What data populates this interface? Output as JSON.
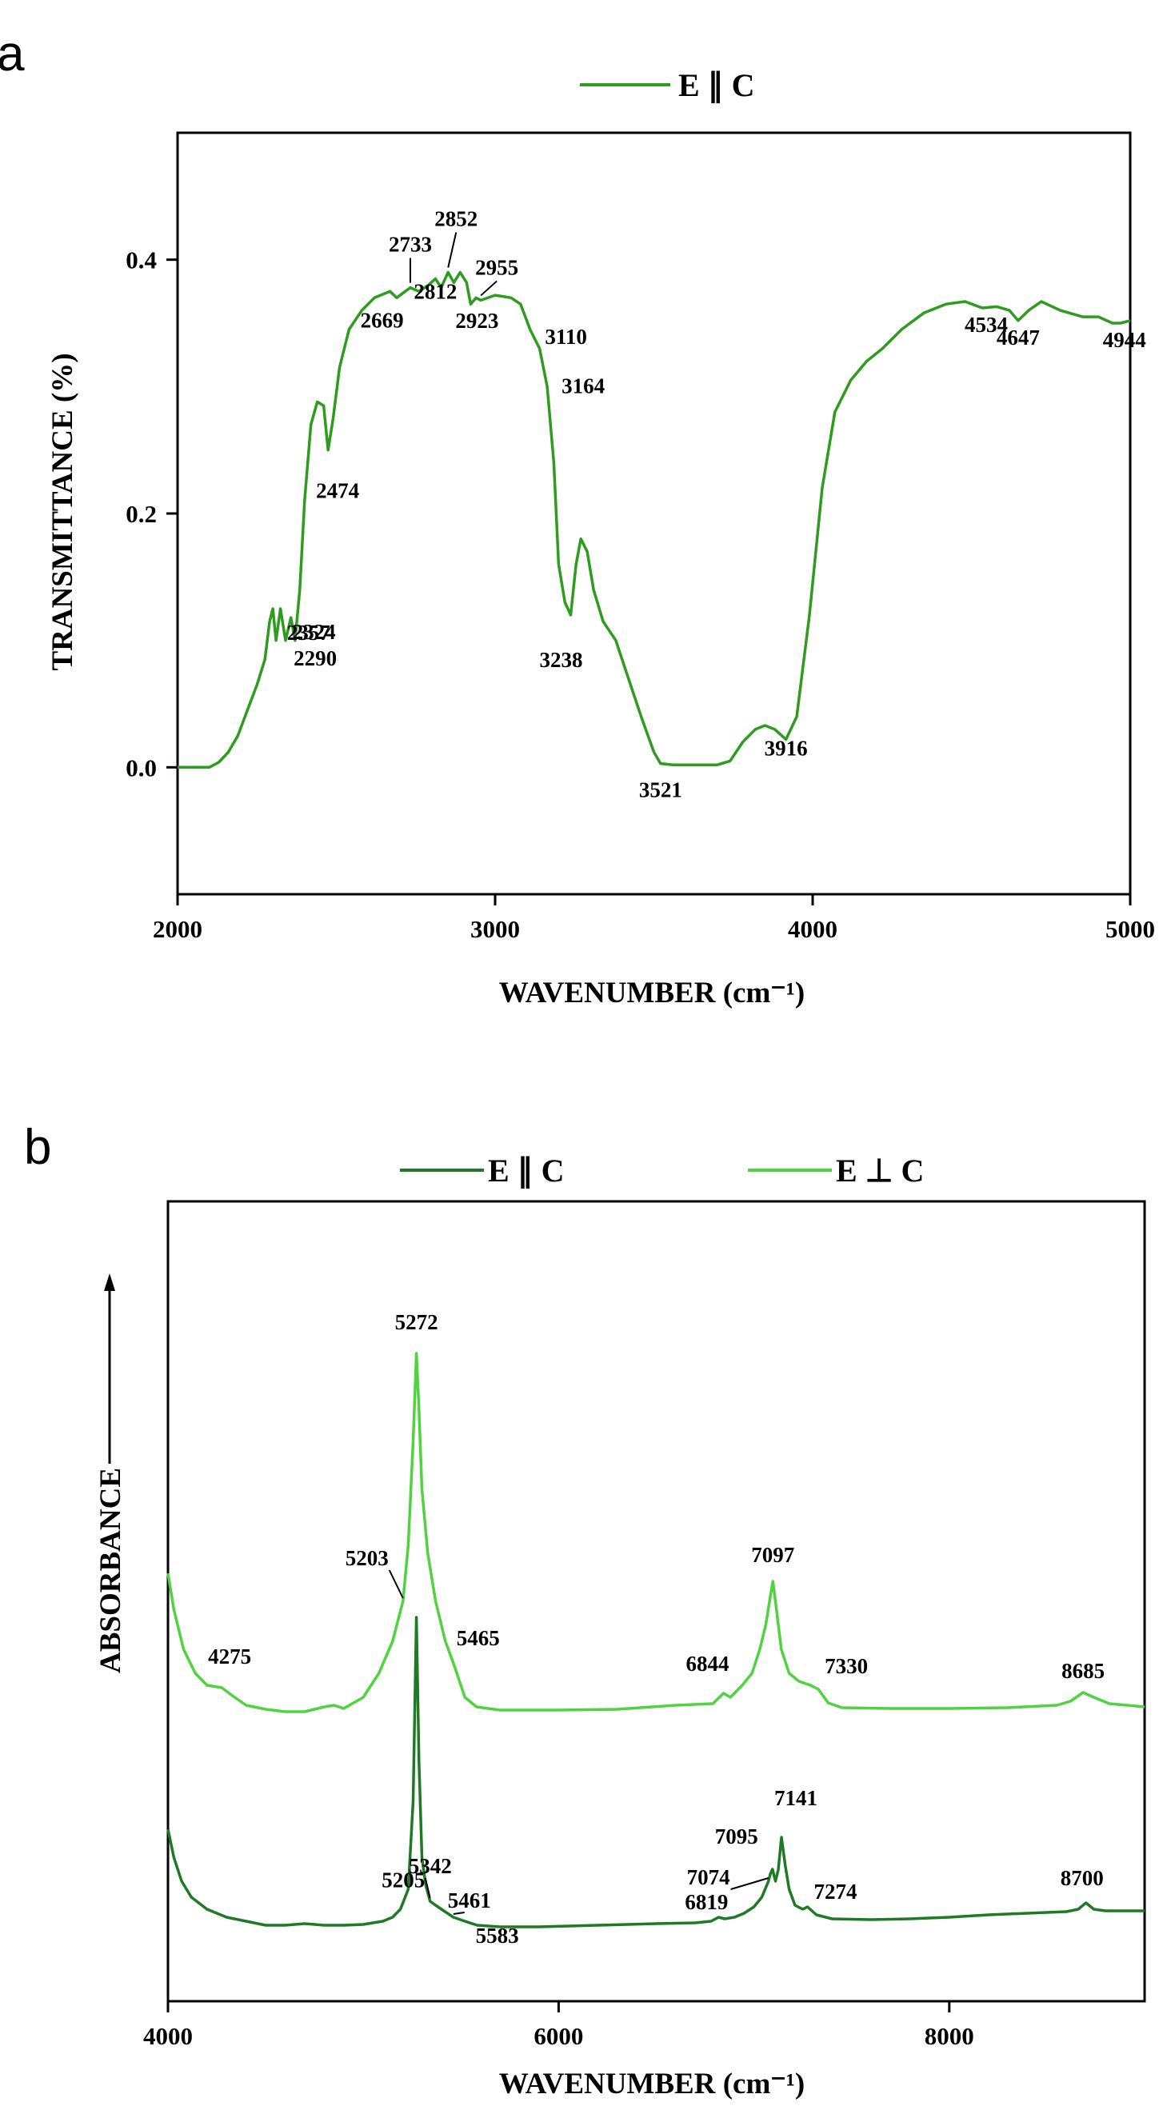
{
  "chart_data": [
    {
      "type": "line",
      "panel": "a",
      "title": "",
      "xlabel": "WAVENUMBER (cm⁻¹)",
      "ylabel": "TRANSMITTANCE (%)",
      "xlim": [
        2000,
        5000
      ],
      "ylim": [
        -0.1,
        0.5
      ],
      "x_ticks": [
        2000,
        3000,
        4000,
        5000
      ],
      "y_ticks": [
        0.0,
        0.2,
        0.4
      ],
      "x_tick_labels": [
        "2000",
        "3000",
        "4000",
        "5000"
      ],
      "y_tick_labels": [
        "0.0",
        "0.2",
        "0.4"
      ],
      "grid": false,
      "legend_position": "top-center",
      "series": [
        {
          "name": "E ∥ C",
          "color": "#2e9c1f",
          "points": [
            [
              2000,
              0.0
            ],
            [
              2100,
              0.0
            ],
            [
              2130,
              0.004
            ],
            [
              2160,
              0.012
            ],
            [
              2190,
              0.025
            ],
            [
              2220,
              0.045
            ],
            [
              2250,
              0.065
            ],
            [
              2275,
              0.085
            ],
            [
              2290,
              0.115
            ],
            [
              2300,
              0.125
            ],
            [
              2310,
              0.1
            ],
            [
              2324,
              0.125
            ],
            [
              2340,
              0.1
            ],
            [
              2357,
              0.118
            ],
            [
              2370,
              0.1
            ],
            [
              2385,
              0.14
            ],
            [
              2400,
              0.21
            ],
            [
              2420,
              0.27
            ],
            [
              2440,
              0.288
            ],
            [
              2460,
              0.285
            ],
            [
              2474,
              0.25
            ],
            [
              2490,
              0.275
            ],
            [
              2510,
              0.315
            ],
            [
              2540,
              0.345
            ],
            [
              2580,
              0.36
            ],
            [
              2620,
              0.37
            ],
            [
              2669,
              0.375
            ],
            [
              2690,
              0.37
            ],
            [
              2733,
              0.378
            ],
            [
              2760,
              0.375
            ],
            [
              2790,
              0.38
            ],
            [
              2812,
              0.385
            ],
            [
              2830,
              0.378
            ],
            [
              2852,
              0.39
            ],
            [
              2870,
              0.382
            ],
            [
              2890,
              0.39
            ],
            [
              2910,
              0.382
            ],
            [
              2923,
              0.365
            ],
            [
              2940,
              0.37
            ],
            [
              2955,
              0.368
            ],
            [
              3000,
              0.372
            ],
            [
              3050,
              0.37
            ],
            [
              3080,
              0.365
            ],
            [
              3110,
              0.345
            ],
            [
              3140,
              0.33
            ],
            [
              3164,
              0.3
            ],
            [
              3185,
              0.24
            ],
            [
              3200,
              0.16
            ],
            [
              3220,
              0.13
            ],
            [
              3238,
              0.12
            ],
            [
              3255,
              0.16
            ],
            [
              3270,
              0.18
            ],
            [
              3290,
              0.17
            ],
            [
              3310,
              0.14
            ],
            [
              3340,
              0.115
            ],
            [
              3380,
              0.1
            ],
            [
              3420,
              0.07
            ],
            [
              3460,
              0.04
            ],
            [
              3500,
              0.012
            ],
            [
              3521,
              0.003
            ],
            [
              3560,
              0.002
            ],
            [
              3620,
              0.002
            ],
            [
              3700,
              0.002
            ],
            [
              3740,
              0.005
            ],
            [
              3780,
              0.02
            ],
            [
              3820,
              0.03
            ],
            [
              3850,
              0.033
            ],
            [
              3880,
              0.03
            ],
            [
              3916,
              0.022
            ],
            [
              3950,
              0.04
            ],
            [
              3990,
              0.12
            ],
            [
              4030,
              0.22
            ],
            [
              4070,
              0.28
            ],
            [
              4120,
              0.305
            ],
            [
              4170,
              0.32
            ],
            [
              4220,
              0.33
            ],
            [
              4280,
              0.345
            ],
            [
              4350,
              0.358
            ],
            [
              4420,
              0.365
            ],
            [
              4480,
              0.367
            ],
            [
              4534,
              0.362
            ],
            [
              4580,
              0.363
            ],
            [
              4620,
              0.36
            ],
            [
              4647,
              0.352
            ],
            [
              4680,
              0.36
            ],
            [
              4720,
              0.367
            ],
            [
              4780,
              0.36
            ],
            [
              4850,
              0.355
            ],
            [
              4900,
              0.355
            ],
            [
              4944,
              0.35
            ],
            [
              4970,
              0.35
            ],
            [
              5000,
              0.352
            ]
          ]
        }
      ],
      "annotations": [
        {
          "text": "2290",
          "x": 2290,
          "y": 0.115
        },
        {
          "text": "2324",
          "x": 2324,
          "y": 0.125
        },
        {
          "text": "2357",
          "x": 2357,
          "y": 0.118
        },
        {
          "text": "2474",
          "x": 2474,
          "y": 0.25
        },
        {
          "text": "2669",
          "x": 2669,
          "y": 0.375
        },
        {
          "text": "2733",
          "x": 2733,
          "y": 0.378
        },
        {
          "text": "2812",
          "x": 2812,
          "y": 0.385
        },
        {
          "text": "2852",
          "x": 2852,
          "y": 0.39
        },
        {
          "text": "2923",
          "x": 2923,
          "y": 0.365
        },
        {
          "text": "2955",
          "x": 2955,
          "y": 0.368
        },
        {
          "text": "3110",
          "x": 3110,
          "y": 0.345
        },
        {
          "text": "3164",
          "x": 3164,
          "y": 0.3
        },
        {
          "text": "3238",
          "x": 3238,
          "y": 0.12
        },
        {
          "text": "3521",
          "x": 3521,
          "y": 0.003
        },
        {
          "text": "3916",
          "x": 3916,
          "y": 0.022
        },
        {
          "text": "4534",
          "x": 4534,
          "y": 0.362
        },
        {
          "text": "4647",
          "x": 4647,
          "y": 0.352
        },
        {
          "text": "4944",
          "x": 4944,
          "y": 0.35
        }
      ]
    },
    {
      "type": "line",
      "panel": "b",
      "title": "",
      "xlabel": "WAVENUMBER (cm⁻¹)",
      "ylabel": "ABSORBANCE",
      "xlim": [
        4000,
        9000
      ],
      "ylim": [
        0,
        1
      ],
      "x_ticks": [
        4000,
        6000,
        8000
      ],
      "x_tick_labels": [
        "4000",
        "6000",
        "8000"
      ],
      "y_ticks": [],
      "grid": false,
      "legend_position": "top",
      "series": [
        {
          "name": "E ∥ C",
          "color": "#1f7a26",
          "points": [
            [
              4000,
              0.215
            ],
            [
              4030,
              0.18
            ],
            [
              4070,
              0.15
            ],
            [
              4120,
              0.13
            ],
            [
              4200,
              0.115
            ],
            [
              4300,
              0.105
            ],
            [
              4400,
              0.1
            ],
            [
              4500,
              0.095
            ],
            [
              4600,
              0.095
            ],
            [
              4700,
              0.097
            ],
            [
              4800,
              0.095
            ],
            [
              4900,
              0.095
            ],
            [
              5000,
              0.096
            ],
            [
              5100,
              0.1
            ],
            [
              5150,
              0.105
            ],
            [
              5190,
              0.115
            ],
            [
              5230,
              0.14
            ],
            [
              5255,
              0.25
            ],
            [
              5272,
              0.48
            ],
            [
              5285,
              0.3
            ],
            [
              5300,
              0.18
            ],
            [
              5320,
              0.145
            ],
            [
              5342,
              0.125
            ],
            [
              5370,
              0.12
            ],
            [
              5400,
              0.115
            ],
            [
              5461,
              0.105
            ],
            [
              5520,
              0.1
            ],
            [
              5583,
              0.095
            ],
            [
              5700,
              0.093
            ],
            [
              5900,
              0.093
            ],
            [
              6200,
              0.095
            ],
            [
              6500,
              0.097
            ],
            [
              6700,
              0.098
            ],
            [
              6780,
              0.1
            ],
            [
              6819,
              0.105
            ],
            [
              6850,
              0.103
            ],
            [
              6900,
              0.105
            ],
            [
              6950,
              0.11
            ],
            [
              7000,
              0.118
            ],
            [
              7040,
              0.13
            ],
            [
              7074,
              0.15
            ],
            [
              7085,
              0.16
            ],
            [
              7095,
              0.165
            ],
            [
              7110,
              0.15
            ],
            [
              7125,
              0.165
            ],
            [
              7141,
              0.205
            ],
            [
              7160,
              0.17
            ],
            [
              7180,
              0.14
            ],
            [
              7210,
              0.12
            ],
            [
              7250,
              0.115
            ],
            [
              7274,
              0.118
            ],
            [
              7320,
              0.108
            ],
            [
              7400,
              0.103
            ],
            [
              7600,
              0.102
            ],
            [
              7800,
              0.103
            ],
            [
              8000,
              0.105
            ],
            [
              8200,
              0.108
            ],
            [
              8400,
              0.11
            ],
            [
              8600,
              0.112
            ],
            [
              8660,
              0.115
            ],
            [
              8700,
              0.123
            ],
            [
              8740,
              0.115
            ],
            [
              8800,
              0.113
            ],
            [
              9000,
              0.113
            ]
          ]
        },
        {
          "name": "E ⊥ C",
          "color": "#4fd33f",
          "points": [
            [
              4000,
              0.535
            ],
            [
              4030,
              0.49
            ],
            [
              4080,
              0.44
            ],
            [
              4140,
              0.41
            ],
            [
              4200,
              0.395
            ],
            [
              4275,
              0.392
            ],
            [
              4330,
              0.382
            ],
            [
              4400,
              0.37
            ],
            [
              4500,
              0.365
            ],
            [
              4600,
              0.362
            ],
            [
              4700,
              0.362
            ],
            [
              4800,
              0.368
            ],
            [
              4850,
              0.37
            ],
            [
              4900,
              0.366
            ],
            [
              5000,
              0.38
            ],
            [
              5080,
              0.41
            ],
            [
              5150,
              0.45
            ],
            [
              5203,
              0.5
            ],
            [
              5230,
              0.57
            ],
            [
              5255,
              0.7
            ],
            [
              5272,
              0.81
            ],
            [
              5285,
              0.74
            ],
            [
              5300,
              0.64
            ],
            [
              5330,
              0.56
            ],
            [
              5370,
              0.5
            ],
            [
              5420,
              0.45
            ],
            [
              5465,
              0.42
            ],
            [
              5520,
              0.38
            ],
            [
              5580,
              0.368
            ],
            [
              5700,
              0.364
            ],
            [
              6000,
              0.364
            ],
            [
              6300,
              0.365
            ],
            [
              6600,
              0.37
            ],
            [
              6790,
              0.372
            ],
            [
              6844,
              0.385
            ],
            [
              6880,
              0.38
            ],
            [
              6940,
              0.395
            ],
            [
              6990,
              0.41
            ],
            [
              7030,
              0.44
            ],
            [
              7060,
              0.47
            ],
            [
              7080,
              0.5
            ],
            [
              7097,
              0.525
            ],
            [
              7115,
              0.49
            ],
            [
              7140,
              0.44
            ],
            [
              7180,
              0.41
            ],
            [
              7230,
              0.4
            ],
            [
              7290,
              0.395
            ],
            [
              7330,
              0.39
            ],
            [
              7380,
              0.373
            ],
            [
              7450,
              0.367
            ],
            [
              7700,
              0.366
            ],
            [
              8000,
              0.366
            ],
            [
              8300,
              0.367
            ],
            [
              8550,
              0.37
            ],
            [
              8620,
              0.375
            ],
            [
              8685,
              0.386
            ],
            [
              8740,
              0.38
            ],
            [
              8820,
              0.372
            ],
            [
              9000,
              0.368
            ]
          ]
        }
      ],
      "annotations": [
        {
          "text": "5205",
          "x": 5205,
          "series": 0
        },
        {
          "text": "5342",
          "x": 5342,
          "series": 0
        },
        {
          "text": "5461",
          "x": 5461,
          "series": 0
        },
        {
          "text": "5583",
          "x": 5583,
          "series": 0
        },
        {
          "text": "6819",
          "x": 6819,
          "series": 0
        },
        {
          "text": "7074",
          "x": 7074,
          "series": 0
        },
        {
          "text": "7095",
          "x": 7095,
          "series": 0
        },
        {
          "text": "7141",
          "x": 7141,
          "series": 0
        },
        {
          "text": "7274",
          "x": 7274,
          "series": 0
        },
        {
          "text": "8700",
          "x": 8700,
          "series": 0
        },
        {
          "text": "4275",
          "x": 4275,
          "series": 1
        },
        {
          "text": "5203",
          "x": 5203,
          "series": 1
        },
        {
          "text": "5272",
          "x": 5272,
          "series": 1
        },
        {
          "text": "5465",
          "x": 5465,
          "series": 1
        },
        {
          "text": "6844",
          "x": 6844,
          "series": 1
        },
        {
          "text": "7097",
          "x": 7097,
          "series": 1
        },
        {
          "text": "7330",
          "x": 7330,
          "series": 1
        },
        {
          "text": "8685",
          "x": 8685,
          "series": 1
        }
      ]
    }
  ],
  "panels": {
    "a": {
      "letter": "a",
      "legend_label": "E ∥ C"
    },
    "b": {
      "letter": "b",
      "legend_labels": [
        "E ∥ C",
        "E ⊥ C"
      ]
    }
  }
}
